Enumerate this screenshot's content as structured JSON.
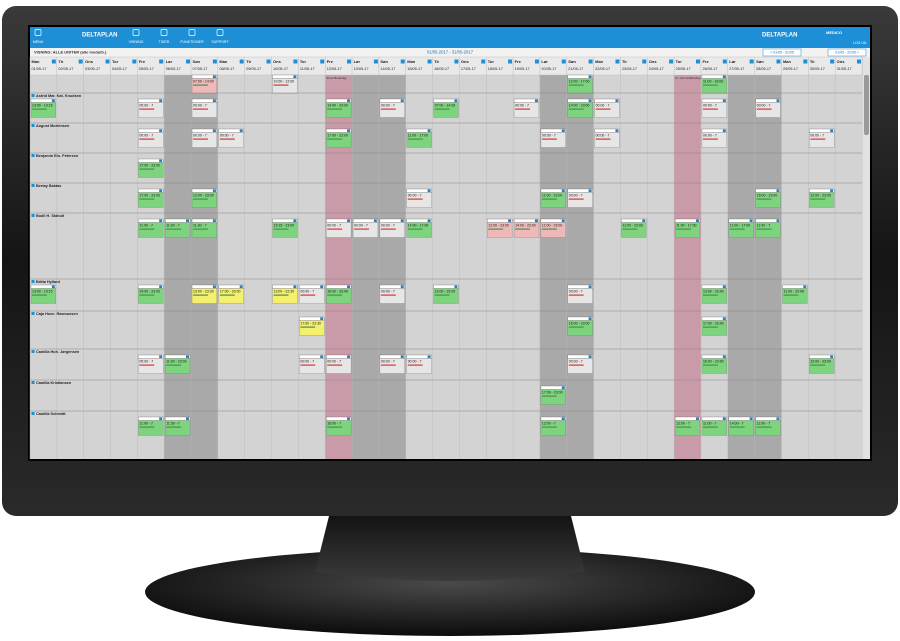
{
  "app": {
    "logo": "DELTAPLAN",
    "logo_right": "DELTAPLAN",
    "menu": [
      "MENU",
      "VISNING",
      "TIDER",
      "FUNKTIONER",
      "SUPPORT"
    ],
    "user": "MEDICO",
    "logout": "LOG UD",
    "view_label": "VISNING: ALLE UNITER (alle medarb.)",
    "period": "01/05-2017 - 31/05-2017",
    "nav_prev": "< 01/05 - 31/05",
    "nav_next": "01/05 - 31/05 >"
  },
  "days": [
    {
      "weekday": "Man",
      "date": "01/05-17"
    },
    {
      "weekday": "Tir",
      "date": "02/05-17"
    },
    {
      "weekday": "Ons",
      "date": "03/05-17"
    },
    {
      "weekday": "Tor",
      "date": "04/05-17"
    },
    {
      "weekday": "Fre",
      "date": "05/05-17"
    },
    {
      "weekday": "Lør",
      "date": "06/05-17",
      "weekend": true
    },
    {
      "weekday": "Søn",
      "date": "07/05-17",
      "weekend": true
    },
    {
      "weekday": "Man",
      "date": "08/05-17"
    },
    {
      "weekday": "Tir",
      "date": "09/05-17"
    },
    {
      "weekday": "Ons",
      "date": "10/05-17"
    },
    {
      "weekday": "Tor",
      "date": "11/05-17"
    },
    {
      "weekday": "Fre",
      "date": "12/05-17",
      "holiday": "Store Bededag"
    },
    {
      "weekday": "Lør",
      "date": "13/05-17",
      "weekend": true
    },
    {
      "weekday": "Søn",
      "date": "14/05-17",
      "weekend": true
    },
    {
      "weekday": "Man",
      "date": "15/05-17"
    },
    {
      "weekday": "Tir",
      "date": "16/05-17"
    },
    {
      "weekday": "Ons",
      "date": "17/05-17"
    },
    {
      "weekday": "Tor",
      "date": "18/05-17"
    },
    {
      "weekday": "Fre",
      "date": "19/05-17"
    },
    {
      "weekday": "Lør",
      "date": "20/05-17",
      "weekend": true
    },
    {
      "weekday": "Søn",
      "date": "21/05-17",
      "weekend": true
    },
    {
      "weekday": "Man",
      "date": "22/05-17"
    },
    {
      "weekday": "Tir",
      "date": "23/05-17"
    },
    {
      "weekday": "Ons",
      "date": "24/05-17"
    },
    {
      "weekday": "Tor",
      "date": "25/05-17",
      "holiday": "Kr. Himmelfartsdag"
    },
    {
      "weekday": "Fre",
      "date": "26/05-17"
    },
    {
      "weekday": "Lør",
      "date": "27/05-17",
      "weekend": true
    },
    {
      "weekday": "Søn",
      "date": "28/05-17",
      "weekend": true
    },
    {
      "weekday": "Man",
      "date": "29/05-17"
    },
    {
      "weekday": "Tir",
      "date": "30/05-17"
    },
    {
      "weekday": "Ons",
      "date": "31/05-17"
    }
  ],
  "open_shifts": [
    {
      "date": "07/05-17",
      "time": "07:00 - 14:00",
      "color": "#f0b9b9"
    },
    {
      "date": "10/05-17",
      "time": "10:00 - 12:00",
      "color": "#e6e6e6"
    },
    {
      "date": "21/05-17",
      "time": "12:00 - 17:00",
      "color": "#7ed47e"
    },
    {
      "date": "26/05-17",
      "time": "11:00 - 18:00",
      "color": "#7ed47e"
    }
  ],
  "employees": [
    {
      "name": "Astrid Mar. Kat. Knudsen",
      "shifts": [
        {
          "date": "01/05-17",
          "time": "13:00 - 19:15",
          "color": "#7ed47e"
        },
        {
          "date": "05/05-17",
          "time": "00:00 - 7",
          "color": "#e6e6e6"
        },
        {
          "date": "07/05-17",
          "time": "00:00 - 7",
          "color": "#e6e6e6"
        },
        {
          "date": "12/05-17",
          "time": "14:00 - 23:00",
          "color": "#7ed47e"
        },
        {
          "date": "14/05-17",
          "time": "00:00 - 7",
          "color": "#e6e6e6"
        },
        {
          "date": "16/05-17",
          "time": "07:00 - 14:00",
          "color": "#7ed47e"
        },
        {
          "date": "19/05-17",
          "time": "00:00 - 7",
          "color": "#e6e6e6"
        },
        {
          "date": "21/05-17",
          "time": "14:00 - 23:00",
          "color": "#7ed47e"
        },
        {
          "date": "22/05-17",
          "time": "00:00 - 7",
          "color": "#e6e6e6"
        },
        {
          "date": "26/05-17",
          "time": "00:00 - 7",
          "color": "#e6e6e6"
        },
        {
          "date": "28/05-17",
          "time": "00:00 - 7",
          "color": "#e6e6e6"
        }
      ]
    },
    {
      "name": "August Mortensen",
      "shifts": [
        {
          "date": "05/05-17",
          "time": "00:00 - 7",
          "color": "#e6e6e6"
        },
        {
          "date": "07/05-17",
          "time": "00:00 - 7",
          "color": "#e6e6e6"
        },
        {
          "date": "08/05-17",
          "time": "00:00 - 7",
          "color": "#e6e6e6"
        },
        {
          "date": "12/05-17",
          "time": "17:00 - 23:00",
          "color": "#7ed47e"
        },
        {
          "date": "15/05-17",
          "time": "11:00 - 17:00",
          "color": "#7ed47e"
        },
        {
          "date": "20/05-17",
          "time": "00:00 - 7",
          "color": "#e6e6e6"
        },
        {
          "date": "22/05-17",
          "time": "00:00 - 7",
          "color": "#e6e6e6"
        },
        {
          "date": "26/05-17",
          "time": "00:00 - 7",
          "color": "#e6e6e6"
        },
        {
          "date": "30/05-17",
          "time": "00:00 - 7",
          "color": "#e6e6e6"
        }
      ]
    },
    {
      "name": "Benjamin Elo. Petersen",
      "shifts": [
        {
          "date": "05/05-17",
          "time": "17:00 - 23:00",
          "color": "#7ed47e"
        }
      ]
    },
    {
      "name": "Bertay Baktas",
      "shifts": [
        {
          "date": "05/05-17",
          "time": "17:00 - 23:00",
          "color": "#7ed47e"
        },
        {
          "date": "07/05-17",
          "time": "12:00 - 23:00",
          "color": "#7ed47e"
        },
        {
          "date": "15/05-17",
          "time": "00:00 - 7",
          "color": "#e6e6e6"
        },
        {
          "date": "20/05-17",
          "time": "11:00 - 23:00",
          "color": "#7ed47e"
        },
        {
          "date": "21/05-17",
          "time": "00:00 - 7",
          "color": "#e6e6e6"
        },
        {
          "date": "28/05-17",
          "time": "16:00 - 23:00",
          "color": "#7ed47e"
        },
        {
          "date": "30/05-17",
          "time": "12:00 - 23:00",
          "color": "#7ed47e"
        }
      ]
    },
    {
      "name": "Bodil H. Staholt",
      "shifts": [
        {
          "date": "05/05-17",
          "time": "11:00 - 7",
          "color": "#7ed47e"
        },
        {
          "date": "06/05-17",
          "time": "11:00 - 7",
          "color": "#7ed47e"
        },
        {
          "date": "07/05-17",
          "time": "11:30 - 7",
          "color": "#7ed47e"
        },
        {
          "date": "10/05-17",
          "time": "13:15 - 23:00",
          "color": "#7ed47e"
        },
        {
          "date": "12/05-17",
          "time": "00:00 - 7",
          "color": "#e6e6e6"
        },
        {
          "date": "13/05-17",
          "time": "00:00 - 7",
          "color": "#e6e6e6"
        },
        {
          "date": "14/05-17",
          "time": "00:00 - 7",
          "color": "#e6e6e6"
        },
        {
          "date": "15/05-17",
          "time": "14:00 - 17:00",
          "color": "#7ed47e"
        },
        {
          "date": "18/05-17",
          "time": "12:00 - 23:00",
          "color": "#f0b9b9"
        },
        {
          "date": "19/05-17",
          "time": "14:00 - 23:00",
          "color": "#f0b9b9"
        },
        {
          "date": "20/05-17",
          "time": "11:00 - 23:00",
          "color": "#f0b9b9"
        },
        {
          "date": "23/05-17",
          "time": "11:00 - 23:00",
          "color": "#7ed47e"
        },
        {
          "date": "25/05-17",
          "time": "11:00 - 17:00",
          "color": "#7ed47e"
        },
        {
          "date": "27/05-17",
          "time": "11:00 - 17:00",
          "color": "#7ed47e"
        },
        {
          "date": "28/05-17",
          "time": "11:00 - 7",
          "color": "#7ed47e"
        }
      ]
    },
    {
      "name": "Britta Hyllard",
      "shifts": [
        {
          "date": "01/05-17",
          "time": "13:00 - 19:15",
          "color": "#7ed47e"
        },
        {
          "date": "05/05-17",
          "time": "14:00 - 23:00",
          "color": "#7ed47e"
        },
        {
          "date": "07/05-17",
          "time": "13:00 - 23:30",
          "color": "#f5ef6e"
        },
        {
          "date": "08/05-17",
          "time": "17:00 - 23:00",
          "color": "#f5ef6e"
        },
        {
          "date": "10/05-17",
          "time": "13:00 - 22:30",
          "color": "#f5ef6e"
        },
        {
          "date": "11/05-17",
          "time": "00:00 - 7",
          "color": "#e6e6e6"
        },
        {
          "date": "12/05-17",
          "time": "16:00 - 23:00",
          "color": "#7ed47e"
        },
        {
          "date": "14/05-17",
          "time": "00:00 - 7",
          "color": "#e6e6e6"
        },
        {
          "date": "16/05-17",
          "time": "13:00 - 23:00",
          "color": "#7ed47e"
        },
        {
          "date": "21/05-17",
          "time": "00:00 - 7",
          "color": "#e6e6e6"
        },
        {
          "date": "26/05-17",
          "time": "13:00 - 23:00",
          "color": "#7ed47e"
        },
        {
          "date": "29/05-17",
          "time": "11:00 - 23:00",
          "color": "#7ed47e"
        }
      ]
    },
    {
      "name": "Caja Hove. Rasmussen",
      "shifts": [
        {
          "date": "11/05-17",
          "time": "17:00 - 22:30",
          "color": "#f5ef6e"
        },
        {
          "date": "21/05-17",
          "time": "16:00 - 23:00",
          "color": "#7ed47e"
        },
        {
          "date": "26/05-17",
          "time": "17:00 - 23:00",
          "color": "#7ed47e"
        }
      ]
    },
    {
      "name": "Camilla Hoh. Jørgensen",
      "shifts": [
        {
          "date": "05/05-17",
          "time": "00:00 - 7",
          "color": "#e6e6e6"
        },
        {
          "date": "06/05-17",
          "time": "11:00 - 23:00",
          "color": "#7ed47e"
        },
        {
          "date": "11/05-17",
          "time": "00:00 - 7",
          "color": "#e6e6e6"
        },
        {
          "date": "12/05-17",
          "time": "00:00 - 7",
          "color": "#e6e6e6"
        },
        {
          "date": "14/05-17",
          "time": "00:00 - 7",
          "color": "#e6e6e6"
        },
        {
          "date": "15/05-17",
          "time": "00:00 - 7",
          "color": "#e6e6e6"
        },
        {
          "date": "21/05-17",
          "time": "00:00 - 7",
          "color": "#e6e6e6"
        },
        {
          "date": "26/05-17",
          "time": "16:00 - 23:00",
          "color": "#7ed47e"
        },
        {
          "date": "30/05-17",
          "time": "12:00 - 23:00",
          "color": "#7ed47e"
        }
      ]
    },
    {
      "name": "Camilla Kristiansen",
      "shifts": [
        {
          "date": "20/05-17",
          "time": "17:00 - 23:00",
          "color": "#7ed47e"
        }
      ]
    },
    {
      "name": "Camilla Schmidt",
      "shifts": [
        {
          "date": "05/05-17",
          "time": "11:00 - 7",
          "color": "#7ed47e"
        },
        {
          "date": "06/05-17",
          "time": "11:30 - 7",
          "color": "#7ed47e"
        },
        {
          "date": "12/05-17",
          "time": "16:00 - 7",
          "color": "#7ed47e"
        },
        {
          "date": "20/05-17",
          "time": "12:00 - 7",
          "color": "#7ed47e"
        },
        {
          "date": "25/05-17",
          "time": "12:00 - 7",
          "color": "#7ed47e"
        },
        {
          "date": "26/05-17",
          "time": "11:00 - 7",
          "color": "#7ed47e"
        },
        {
          "date": "27/05-17",
          "time": "14:00 - 7",
          "color": "#7ed47e"
        },
        {
          "date": "28/05-17",
          "time": "11:00 - 7",
          "color": "#7ed47e"
        }
      ]
    }
  ]
}
